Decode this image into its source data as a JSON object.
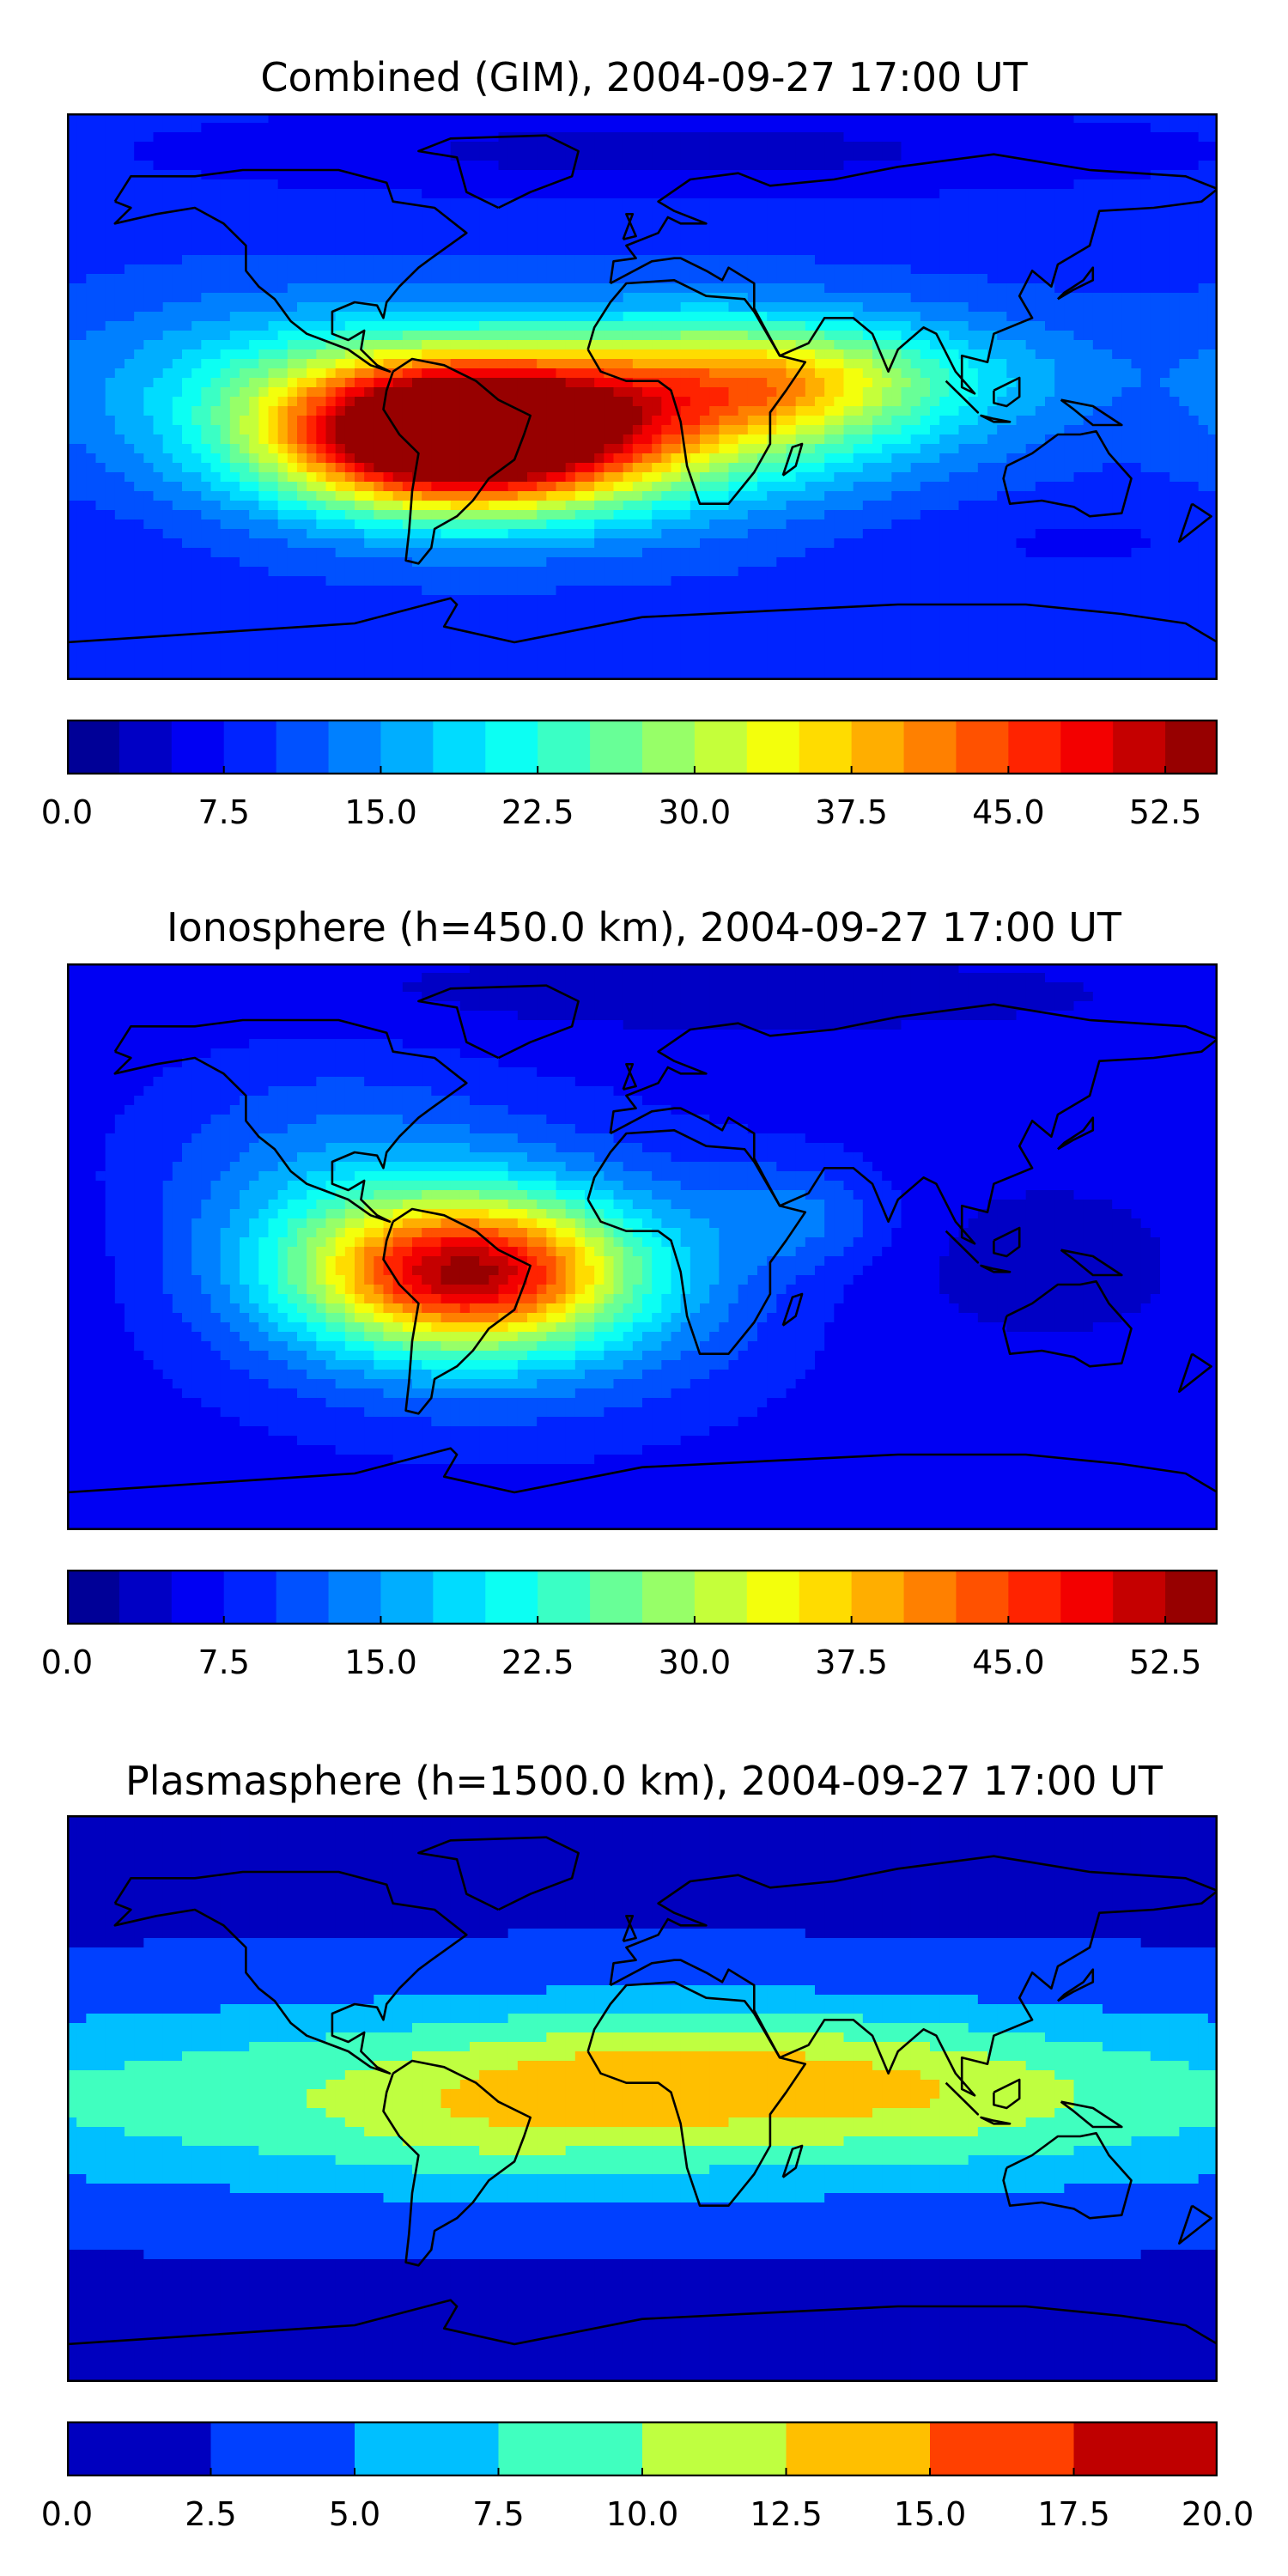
{
  "chart_data": [
    {
      "type": "heatmap",
      "title": "Combined (GIM), 2004-09-27 17:00 UT",
      "colormap": "jet",
      "range": [
        0.0,
        55.0
      ],
      "levels": 22,
      "level_step": 2.5,
      "colorbar_ticks": [
        "0.0",
        "7.5",
        "15.0",
        "22.5",
        "30.0",
        "37.5",
        "45.0",
        "52.5"
      ],
      "colorbar_tick_values": [
        0.0,
        7.5,
        15.0,
        22.5,
        30.0,
        37.5,
        45.0,
        52.5
      ],
      "field": {
        "background": 9.0,
        "features": [
          {
            "lon": -58,
            "lat": -12,
            "amp": 46,
            "slon": 38,
            "slat": 16
          },
          {
            "lon": -30,
            "lat": -10,
            "amp": 20,
            "slon": 70,
            "slat": 20
          },
          {
            "lon": 20,
            "lat": 5,
            "amp": 14,
            "slon": 45,
            "slat": 16
          },
          {
            "lon": 48,
            "lat": 5,
            "amp": 9,
            "slon": 30,
            "slat": 12
          },
          {
            "lon": 100,
            "lat": 8,
            "amp": 5,
            "slon": 40,
            "slat": 14
          },
          {
            "lon": -115,
            "lat": 10,
            "amp": 6,
            "slon": 45,
            "slat": 18
          },
          {
            "lon": 10,
            "lat": 78,
            "amp": -5,
            "slon": 110,
            "slat": 10
          },
          {
            "lon": 130,
            "lat": -45,
            "amp": -2,
            "slon": 50,
            "slat": 10
          }
        ]
      }
    },
    {
      "type": "heatmap",
      "title": "Ionosphere  (h=450.0 km), 2004-09-27 17:00 UT",
      "colormap": "jet",
      "range": [
        0.0,
        55.0
      ],
      "levels": 22,
      "level_step": 2.5,
      "colorbar_ticks": [
        "0.0",
        "7.5",
        "15.0",
        "22.5",
        "30.0",
        "37.5",
        "45.0",
        "52.5"
      ],
      "colorbar_tick_values": [
        0.0,
        7.5,
        15.0,
        22.5,
        30.0,
        37.5,
        45.0,
        52.5
      ],
      "field": {
        "background": 6.0,
        "features": [
          {
            "lon": -55,
            "lat": -8,
            "amp": 32,
            "slon": 34,
            "slat": 16
          },
          {
            "lon": -45,
            "lat": -10,
            "amp": 14,
            "slon": 55,
            "slat": 28
          },
          {
            "lon": -100,
            "lat": 20,
            "amp": 6,
            "slon": 40,
            "slat": 30
          },
          {
            "lon": 50,
            "lat": 10,
            "amp": 6,
            "slon": 20,
            "slat": 12
          },
          {
            "lon": 120,
            "lat": -5,
            "amp": -2,
            "slon": 60,
            "slat": 20
          },
          {
            "lon": 0,
            "lat": 80,
            "amp": -2,
            "slon": 120,
            "slat": 10
          }
        ]
      }
    },
    {
      "type": "heatmap",
      "title": "Plasmasphere (h=1500.0 km), 2004-09-27 17:00 UT",
      "colormap": "jet",
      "range": [
        0.0,
        20.0
      ],
      "levels": 8,
      "level_step": 2.5,
      "colorbar_ticks": [
        "0.0",
        "2.5",
        "5.0",
        "7.5",
        "10.0",
        "12.5",
        "15.0",
        "17.5",
        "20.0"
      ],
      "colorbar_tick_values": [
        0.0,
        2.5,
        5.0,
        7.5,
        10.0,
        12.5,
        15.0,
        17.5,
        20.0
      ],
      "field": {
        "background": 2.0,
        "features": [
          {
            "lon": 0,
            "lat": 0,
            "amp": 8.5,
            "slon": 200,
            "slat": 22
          },
          {
            "lon": 15,
            "lat": 8,
            "amp": 4.5,
            "slon": 55,
            "slat": 14
          },
          {
            "lon": 100,
            "lat": 2,
            "amp": 1.5,
            "slon": 35,
            "slat": 12
          },
          {
            "lon": -50,
            "lat": -10,
            "amp": 1.5,
            "slon": 30,
            "slat": 12
          }
        ]
      }
    }
  ]
}
